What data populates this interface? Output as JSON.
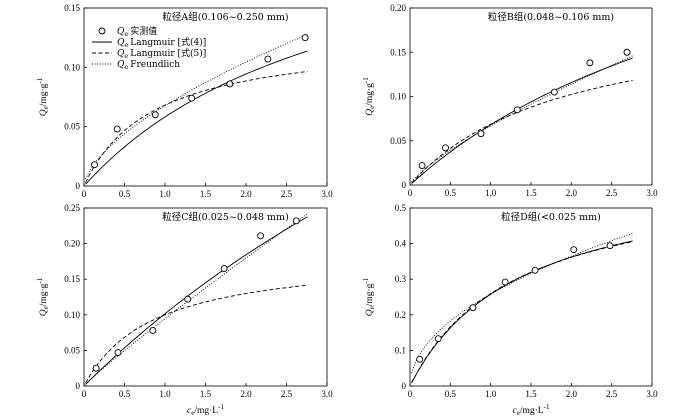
{
  "legend": {
    "items": [
      {
        "symbol": "Q",
        "sub": "e",
        "text": "实测值",
        "style": "marker"
      },
      {
        "symbol": "Q",
        "sub": "e",
        "text": "Langmuir [式(4)]",
        "style": "solid"
      },
      {
        "symbol": "Q",
        "sub": "e",
        "text": "Langmuir [式(5)]",
        "style": "dashed"
      },
      {
        "symbol": "Q",
        "sub": "e",
        "text": "Freundlich",
        "style": "dotted"
      }
    ]
  },
  "colors": {
    "line": "#000000",
    "marker_fill": "#ffffff"
  },
  "chart_data": [
    {
      "type": "scatter",
      "title": "粒径A组(0.106~0.250 mm)",
      "xlabel": "c_e/mg·L^-1",
      "ylabel": "Q_e/mg·g^-1",
      "xlim": [
        0,
        3.0
      ],
      "ylim": [
        0,
        0.15
      ],
      "xticks": [
        "0",
        "0.5",
        "1.0",
        "1.5",
        "2.0",
        "2.5",
        "3.0"
      ],
      "yticks": [
        "0",
        "0.05",
        "0.10",
        "0.15"
      ],
      "show_xlabel": false,
      "show_legend": true,
      "series": [
        {
          "name": "Qe实测值",
          "style": "marker",
          "x": [
            0.13,
            0.41,
            0.88,
            1.33,
            1.8,
            2.27,
            2.73
          ],
          "y": [
            0.018,
            0.048,
            0.06,
            0.074,
            0.086,
            0.107,
            0.125
          ]
        },
        {
          "name": "Qe Langmuir [式(4)]",
          "style": "solid",
          "qm": 0.249,
          "kl": 0.305
        },
        {
          "name": "Qe Langmuir [式(5)]",
          "style": "dashed",
          "qm": 0.1264,
          "kl": 1.17
        },
        {
          "name": "Qe Freundlich",
          "style": "dotted",
          "kf": 0.0677,
          "n": 1.6
        }
      ]
    },
    {
      "type": "scatter",
      "title": "粒径B组(0.048~0.106 mm)",
      "xlabel": "c_e/mg·L^-1",
      "ylabel": "Q_e/mg·g^-1",
      "xlim": [
        0,
        3.0
      ],
      "ylim": [
        0,
        0.2
      ],
      "xticks": [
        "0",
        "0.5",
        "1.0",
        "1.5",
        "2.0",
        "2.5",
        "3.0"
      ],
      "yticks": [
        "0",
        "0.05",
        "0.10",
        "0.15",
        "0.20"
      ],
      "show_xlabel": false,
      "show_legend": false,
      "series": [
        {
          "name": "Qe实测值",
          "style": "marker",
          "x": [
            0.15,
            0.44,
            0.88,
            1.33,
            1.79,
            2.23,
            2.69
          ],
          "y": [
            0.022,
            0.042,
            0.058,
            0.085,
            0.105,
            0.138,
            0.15
          ]
        },
        {
          "name": "Qe Langmuir [式(4)]",
          "style": "solid",
          "qm": 0.385,
          "kl": 0.215
        },
        {
          "name": "Qe Langmuir [式(5)]",
          "style": "dashed",
          "qm": 0.2007,
          "kl": 0.52
        },
        {
          "name": "Qe Freundlich",
          "style": "dotted",
          "kf": 0.0668,
          "n": 1.3
        }
      ]
    },
    {
      "type": "scatter",
      "title": "粒径C组(0.025~0.048 mm)",
      "xlabel": "c_e/mg·L^-1",
      "ylabel": "Q_e/mg·g^-1",
      "xlim": [
        0,
        3.0
      ],
      "ylim": [
        0,
        0.25
      ],
      "xticks": [
        "0",
        "0.5",
        "1.0",
        "1.5",
        "2.0",
        "2.5",
        "3.0"
      ],
      "yticks": [
        "0",
        "0.05",
        "0.10",
        "0.15",
        "0.20",
        "0.25"
      ],
      "show_xlabel": true,
      "show_legend": false,
      "series": [
        {
          "name": "Qe实测值",
          "style": "marker",
          "x": [
            0.15,
            0.42,
            0.85,
            1.28,
            1.73,
            2.18,
            2.62
          ],
          "y": [
            0.025,
            0.047,
            0.078,
            0.122,
            0.165,
            0.211,
            0.232
          ]
        },
        {
          "name": "Qe Langmuir [式(4)]",
          "style": "solid",
          "qm": 1.0,
          "kl": 0.113
        },
        {
          "name": "Qe Langmuir [式(5)]",
          "style": "dashed",
          "qm": 0.1854,
          "kl": 1.17
        },
        {
          "name": "Qe Freundlich",
          "style": "dotted",
          "kf": 0.0946,
          "n": 1.08
        }
      ]
    },
    {
      "type": "scatter",
      "title": "粒径D组(<0.025 mm)",
      "xlabel": "c_e/mg·L^-1",
      "ylabel": "Q_e/mg·g^-1",
      "xlim": [
        0,
        3.0
      ],
      "ylim": [
        0,
        0.5
      ],
      "xticks": [
        "0",
        "0.5",
        "1.0",
        "1.5",
        "2.0",
        "2.5",
        "3.0"
      ],
      "yticks": [
        "0",
        "0.1",
        "0.2",
        "0.3",
        "0.4",
        "0.5"
      ],
      "show_xlabel": true,
      "show_legend": false,
      "series": [
        {
          "name": "Qe实测值",
          "style": "marker",
          "x": [
            0.12,
            0.35,
            0.78,
            1.18,
            1.55,
            2.03,
            2.48
          ],
          "y": [
            0.075,
            0.133,
            0.22,
            0.292,
            0.325,
            0.383,
            0.394
          ]
        },
        {
          "name": "Qe Langmuir [式(4)]",
          "style": "solid",
          "qm": 0.608,
          "kl": 0.736
        },
        {
          "name": "Qe Langmuir [式(5)]",
          "style": "dashed",
          "qm": 0.595,
          "kl": 0.774
        },
        {
          "name": "Qe Freundlich",
          "style": "dotted",
          "kf": 0.258,
          "n": 2.0
        }
      ]
    }
  ]
}
